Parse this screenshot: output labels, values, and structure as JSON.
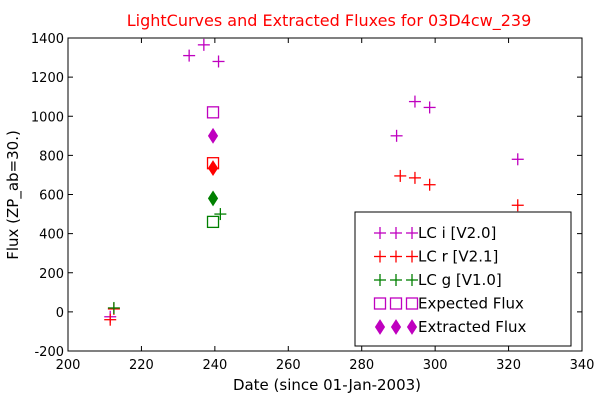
{
  "chart_data": {
    "type": "scatter",
    "title": "LightCurves and Extracted Fluxes for 03D4cw_239",
    "xlabel": "Date (since 01-Jan-2003)",
    "ylabel": "Flux (ZP_ab=30.)",
    "xlim": [
      200,
      340
    ],
    "ylim": [
      -200,
      1400
    ],
    "xticks": [
      200,
      220,
      240,
      260,
      280,
      300,
      320,
      340
    ],
    "yticks": [
      -200,
      0,
      200,
      400,
      600,
      800,
      1000,
      1200,
      1400
    ],
    "grid": false,
    "legend_position": "bottom-right",
    "colors": {
      "title": "#ff0000",
      "i": "#bf00bf",
      "r": "#ff0000",
      "g": "#008000"
    },
    "series": [
      {
        "name": "LC i [V2.0]",
        "marker": "plus",
        "color": "#bf00bf",
        "points": [
          [
            211.5,
            -25
          ],
          [
            233,
            1310
          ],
          [
            237,
            1365
          ],
          [
            241,
            1280
          ],
          [
            289.5,
            900
          ],
          [
            294.5,
            1075
          ],
          [
            298.5,
            1045
          ],
          [
            322.5,
            780
          ]
        ]
      },
      {
        "name": "LC r [V2.1]",
        "marker": "plus",
        "color": "#ff0000",
        "points": [
          [
            211.5,
            -40
          ],
          [
            212.5,
            15
          ],
          [
            290.5,
            695
          ],
          [
            294.5,
            685
          ],
          [
            298.5,
            650
          ],
          [
            322.5,
            545
          ]
        ]
      },
      {
        "name": "LC g [V1.0]",
        "marker": "plus",
        "color": "#008000",
        "points": [
          [
            212.5,
            20
          ],
          [
            241.5,
            500
          ]
        ]
      },
      {
        "name": "Expected Flux",
        "marker": "square",
        "colors_by_band": true,
        "points": [
          [
            239.5,
            1020,
            "i"
          ],
          [
            239.5,
            760,
            "r"
          ],
          [
            239.5,
            460,
            "g"
          ]
        ]
      },
      {
        "name": "Extracted Flux",
        "marker": "diamond",
        "colors_by_band": true,
        "points": [
          [
            239.5,
            900,
            "i"
          ],
          [
            239.5,
            735,
            "r"
          ],
          [
            239.5,
            580,
            "g"
          ]
        ]
      }
    ],
    "legend": {
      "entries": [
        {
          "label": "LC i [V2.0]",
          "marker": "plus",
          "color": "#bf00bf"
        },
        {
          "label": "LC r [V2.1]",
          "marker": "plus",
          "color": "#ff0000"
        },
        {
          "label": "LC g [V1.0]",
          "marker": "plus",
          "color": "#008000"
        },
        {
          "label": "Expected Flux",
          "marker": "square",
          "color": "#bf00bf"
        },
        {
          "label": "Extracted Flux",
          "marker": "diamond",
          "color": "#bf00bf"
        }
      ]
    }
  }
}
